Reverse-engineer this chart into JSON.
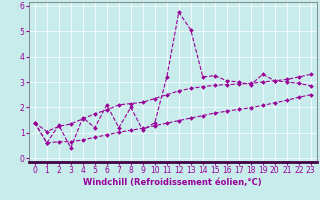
{
  "xlabel": "Windchill (Refroidissement éolien,°C)",
  "bg_color": "#c8ecec",
  "grid_color": "#ffffff",
  "line_color": "#990099",
  "x_data": [
    0,
    1,
    2,
    3,
    4,
    5,
    6,
    7,
    8,
    9,
    10,
    11,
    12,
    13,
    14,
    15,
    16,
    17,
    18,
    19,
    20,
    21,
    22,
    23
  ],
  "y_main": [
    1.4,
    0.6,
    1.3,
    0.4,
    1.6,
    1.2,
    2.1,
    1.2,
    2.0,
    1.1,
    1.4,
    3.2,
    5.75,
    5.05,
    3.2,
    3.25,
    3.05,
    3.0,
    2.9,
    3.3,
    3.05,
    3.0,
    2.95,
    2.85
  ],
  "y_upper": [
    1.4,
    1.05,
    1.25,
    1.35,
    1.55,
    1.75,
    1.9,
    2.1,
    2.15,
    2.2,
    2.35,
    2.5,
    2.65,
    2.75,
    2.82,
    2.87,
    2.9,
    2.92,
    2.95,
    3.0,
    3.05,
    3.1,
    3.2,
    3.3
  ],
  "y_lower": [
    1.4,
    0.6,
    0.65,
    0.65,
    0.72,
    0.82,
    0.92,
    1.02,
    1.1,
    1.18,
    1.28,
    1.38,
    1.48,
    1.58,
    1.68,
    1.78,
    1.85,
    1.92,
    1.99,
    2.08,
    2.18,
    2.28,
    2.4,
    2.5
  ],
  "xlim": [
    0,
    23
  ],
  "ylim": [
    0,
    6
  ],
  "xticks": [
    0,
    1,
    2,
    3,
    4,
    5,
    6,
    7,
    8,
    9,
    10,
    11,
    12,
    13,
    14,
    15,
    16,
    17,
    18,
    19,
    20,
    21,
    22,
    23
  ],
  "yticks": [
    0,
    1,
    2,
    3,
    4,
    5,
    6
  ],
  "tick_fontsize": 5.5,
  "xlabel_fontsize": 6.0
}
